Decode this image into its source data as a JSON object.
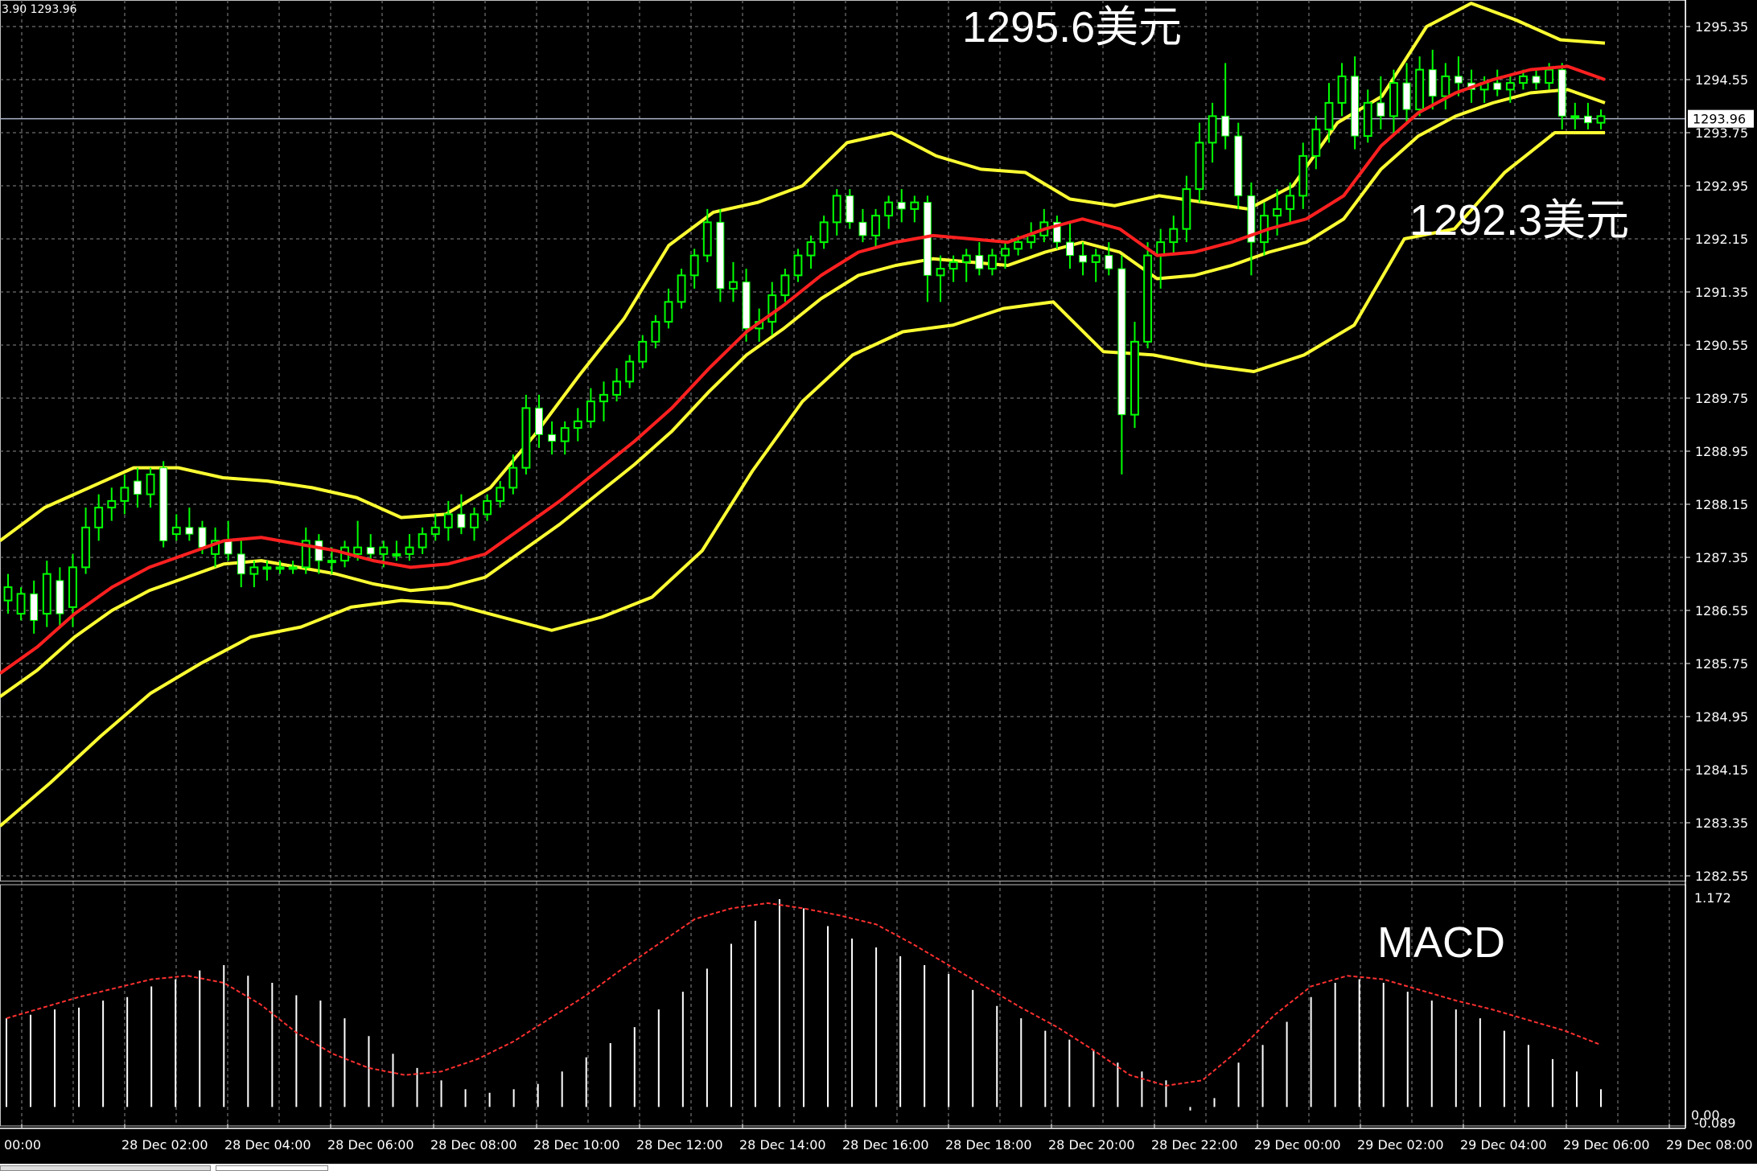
{
  "header": {
    "text": "3.90 1293.96"
  },
  "price_axis_labels": [
    "1295.35",
    "1294.55",
    "1293.75",
    "1292.95",
    "1292.15",
    "1291.35",
    "1290.55",
    "1289.75",
    "1288.95",
    "1288.15",
    "1287.35",
    "1286.55",
    "1285.75",
    "1284.95",
    "1284.15",
    "1283.35",
    "1282.55"
  ],
  "current_price": "1293.96",
  "time_labels": [
    "00:00",
    "28 Dec 02:00",
    "28 Dec 04:00",
    "28 Dec 06:00",
    "28 Dec 08:00",
    "28 Dec 10:00",
    "28 Dec 12:00",
    "28 Dec 14:00",
    "28 Dec 16:00",
    "28 Dec 18:00",
    "28 Dec 20:00",
    "28 Dec 22:00",
    "29 Dec 00:00",
    "29 Dec 02:00",
    "29 Dec 04:00",
    "29 Dec 06:00",
    "29 Dec 08:00"
  ],
  "annotations": {
    "high": "1295.6美元",
    "low": "1292.3美元",
    "macd": "MACD"
  },
  "macd_axis": {
    "top": "1.172",
    "zero": "0.00",
    "bottom": "-0.089"
  },
  "colors": {
    "background": "#000000",
    "grid": "#8a8a8a",
    "bull": "#00ff00",
    "bear_body": "#ffffff",
    "bollinger": "#ffff33",
    "ma": "#ff2020",
    "macd_hist": "#ffffff",
    "macd_signal": "#ff3030"
  },
  "chart_data": {
    "type": "candlestick",
    "ylim": [
      1282.55,
      1295.35
    ],
    "ma_red": [
      1285.6,
      1286.0,
      1286.5,
      1286.9,
      1287.2,
      1287.4,
      1287.6,
      1287.65,
      1287.55,
      1287.45,
      1287.3,
      1287.2,
      1287.25,
      1287.4,
      1287.8,
      1288.2,
      1288.65,
      1289.1,
      1289.6,
      1290.2,
      1290.75,
      1291.15,
      1291.6,
      1291.95,
      1292.1,
      1292.2,
      1292.15,
      1292.1,
      1292.3,
      1292.45,
      1292.3,
      1291.9,
      1291.95,
      1292.1,
      1292.3,
      1292.45,
      1292.8,
      1293.55,
      1294.05,
      1294.35,
      1294.55,
      1294.7,
      1294.75,
      1294.55
    ],
    "bb_upper": [
      1287.6,
      1288.1,
      1288.4,
      1288.7,
      1288.7,
      1288.55,
      1288.5,
      1288.4,
      1288.25,
      1287.95,
      1288.0,
      1288.4,
      1289.2,
      1290.1,
      1290.95,
      1292.05,
      1292.55,
      1292.7,
      1292.95,
      1293.6,
      1293.75,
      1293.4,
      1293.2,
      1293.15,
      1292.75,
      1292.65,
      1292.8,
      1292.7,
      1292.6,
      1292.95,
      1293.9,
      1294.3,
      1295.35,
      1295.7,
      1295.45,
      1295.15,
      1295.1
    ],
    "bb_lower": [
      1283.3,
      1283.95,
      1284.65,
      1285.3,
      1285.75,
      1286.15,
      1286.3,
      1286.6,
      1286.7,
      1286.65,
      1286.45,
      1286.25,
      1286.45,
      1286.75,
      1287.45,
      1288.65,
      1289.7,
      1290.4,
      1290.75,
      1290.85,
      1291.1,
      1291.2,
      1290.45,
      1290.4,
      1290.25,
      1290.15,
      1290.4,
      1290.85,
      1292.15,
      1292.3,
      1293.15,
      1293.75,
      1293.75
    ],
    "macd_histogram": [
      0.5,
      0.52,
      0.55,
      0.56,
      0.6,
      0.62,
      0.68,
      0.72,
      0.77,
      0.8,
      0.74,
      0.7,
      0.63,
      0.6,
      0.5,
      0.4,
      0.3,
      0.22,
      0.15,
      0.1,
      0.08,
      0.1,
      0.13,
      0.2,
      0.28,
      0.36,
      0.45,
      0.55,
      0.65,
      0.78,
      0.92,
      1.05,
      1.172,
      1.12,
      1.02,
      0.95,
      0.9,
      0.85,
      0.8,
      0.75,
      0.66,
      0.57,
      0.5,
      0.43,
      0.38,
      0.32,
      0.25,
      0.2,
      0.15,
      -0.02,
      0.05,
      0.25,
      0.35,
      0.48,
      0.62,
      0.7,
      0.72,
      0.7,
      0.65,
      0.6,
      0.55,
      0.5,
      0.43,
      0.35,
      0.27,
      0.2,
      0.1
    ],
    "macd_signal": [
      0.5,
      0.56,
      0.62,
      0.67,
      0.72,
      0.74,
      0.7,
      0.58,
      0.42,
      0.3,
      0.22,
      0.18,
      0.2,
      0.27,
      0.37,
      0.5,
      0.63,
      0.78,
      0.92,
      1.06,
      1.12,
      1.15,
      1.12,
      1.08,
      1.03,
      0.92,
      0.8,
      0.68,
      0.56,
      0.45,
      0.32,
      0.18,
      0.12,
      0.15,
      0.32,
      0.52,
      0.68,
      0.74,
      0.72,
      0.66,
      0.6,
      0.55,
      0.49,
      0.43,
      0.35
    ],
    "candles": [
      [
        1286.7,
        1287.1,
        1286.5,
        1286.9
      ],
      [
        1286.5,
        1286.9,
        1286.4,
        1286.8
      ],
      [
        1286.8,
        1287.0,
        1286.2,
        1286.4
      ],
      [
        1286.5,
        1287.3,
        1286.3,
        1287.1
      ],
      [
        1287.0,
        1287.2,
        1286.3,
        1286.5
      ],
      [
        1286.6,
        1287.4,
        1286.3,
        1287.2
      ],
      [
        1287.2,
        1288.1,
        1287.1,
        1287.8
      ],
      [
        1287.8,
        1288.3,
        1287.6,
        1288.1
      ],
      [
        1288.1,
        1288.4,
        1287.9,
        1288.2
      ],
      [
        1288.2,
        1288.6,
        1288.0,
        1288.4
      ],
      [
        1288.5,
        1288.7,
        1288.1,
        1288.3
      ],
      [
        1288.3,
        1288.7,
        1288.1,
        1288.6
      ],
      [
        1288.7,
        1288.8,
        1287.5,
        1287.6
      ],
      [
        1287.7,
        1288.0,
        1287.6,
        1287.8
      ],
      [
        1287.8,
        1288.1,
        1287.6,
        1287.7
      ],
      [
        1287.8,
        1287.9,
        1287.4,
        1287.5
      ],
      [
        1287.4,
        1287.8,
        1287.2,
        1287.6
      ],
      [
        1287.6,
        1287.9,
        1287.3,
        1287.4
      ],
      [
        1287.4,
        1287.6,
        1286.9,
        1287.1
      ],
      [
        1287.1,
        1287.3,
        1286.9,
        1287.2
      ],
      [
        1287.2,
        1287.3,
        1287.0,
        1287.2
      ],
      [
        1287.2,
        1287.3,
        1287.1,
        1287.2
      ],
      [
        1287.2,
        1287.3,
        1287.1,
        1287.2
      ],
      [
        1287.2,
        1287.8,
        1287.1,
        1287.6
      ],
      [
        1287.6,
        1287.7,
        1287.1,
        1287.3
      ],
      [
        1287.3,
        1287.5,
        1287.1,
        1287.3
      ],
      [
        1287.3,
        1287.6,
        1287.2,
        1287.5
      ],
      [
        1287.4,
        1287.9,
        1287.3,
        1287.5
      ],
      [
        1287.5,
        1287.7,
        1287.3,
        1287.4
      ],
      [
        1287.4,
        1287.6,
        1287.2,
        1287.5
      ],
      [
        1287.4,
        1287.6,
        1287.3,
        1287.4
      ],
      [
        1287.4,
        1287.7,
        1287.3,
        1287.5
      ],
      [
        1287.5,
        1287.8,
        1287.4,
        1287.7
      ],
      [
        1287.7,
        1288.0,
        1287.6,
        1287.8
      ],
      [
        1287.8,
        1288.2,
        1287.6,
        1288.0
      ],
      [
        1288.0,
        1288.3,
        1287.7,
        1287.8
      ],
      [
        1287.8,
        1288.1,
        1287.6,
        1288.0
      ],
      [
        1288.0,
        1288.3,
        1287.9,
        1288.2
      ],
      [
        1288.2,
        1288.5,
        1288.1,
        1288.4
      ],
      [
        1288.4,
        1288.9,
        1288.3,
        1288.7
      ],
      [
        1288.7,
        1289.8,
        1288.6,
        1289.6
      ],
      [
        1289.6,
        1289.8,
        1289.0,
        1289.2
      ],
      [
        1289.2,
        1289.4,
        1288.9,
        1289.1
      ],
      [
        1289.1,
        1289.4,
        1288.9,
        1289.3
      ],
      [
        1289.3,
        1289.6,
        1289.1,
        1289.4
      ],
      [
        1289.4,
        1289.9,
        1289.3,
        1289.7
      ],
      [
        1289.7,
        1290.0,
        1289.4,
        1289.8
      ],
      [
        1289.8,
        1290.2,
        1289.7,
        1290.0
      ],
      [
        1290.0,
        1290.4,
        1289.9,
        1290.3
      ],
      [
        1290.3,
        1290.7,
        1290.2,
        1290.6
      ],
      [
        1290.6,
        1291.0,
        1290.5,
        1290.9
      ],
      [
        1290.9,
        1291.4,
        1290.8,
        1291.2
      ],
      [
        1291.2,
        1291.7,
        1291.1,
        1291.6
      ],
      [
        1291.6,
        1292.0,
        1291.4,
        1291.9
      ],
      [
        1291.9,
        1292.6,
        1291.8,
        1292.4
      ],
      [
        1292.4,
        1292.6,
        1291.2,
        1291.4
      ],
      [
        1291.4,
        1291.8,
        1291.2,
        1291.5
      ],
      [
        1291.5,
        1291.7,
        1290.6,
        1290.8
      ],
      [
        1290.8,
        1291.1,
        1290.6,
        1290.9
      ],
      [
        1290.9,
        1291.5,
        1290.7,
        1291.3
      ],
      [
        1291.3,
        1291.7,
        1291.2,
        1291.6
      ],
      [
        1291.6,
        1292.0,
        1291.5,
        1291.9
      ],
      [
        1291.9,
        1292.2,
        1291.7,
        1292.1
      ],
      [
        1292.1,
        1292.5,
        1292.0,
        1292.4
      ],
      [
        1292.4,
        1292.9,
        1292.2,
        1292.8
      ],
      [
        1292.8,
        1292.9,
        1292.3,
        1292.4
      ],
      [
        1292.4,
        1292.6,
        1292.1,
        1292.2
      ],
      [
        1292.2,
        1292.6,
        1292.0,
        1292.5
      ],
      [
        1292.5,
        1292.8,
        1292.3,
        1292.7
      ],
      [
        1292.7,
        1292.9,
        1292.4,
        1292.6
      ],
      [
        1292.6,
        1292.8,
        1292.4,
        1292.7
      ],
      [
        1292.7,
        1292.8,
        1291.2,
        1291.6
      ],
      [
        1291.6,
        1291.9,
        1291.2,
        1291.7
      ],
      [
        1291.7,
        1291.9,
        1291.5,
        1291.8
      ],
      [
        1291.8,
        1292.0,
        1291.5,
        1291.9
      ],
      [
        1291.9,
        1292.1,
        1291.6,
        1291.7
      ],
      [
        1291.7,
        1292.0,
        1291.6,
        1291.9
      ],
      [
        1291.9,
        1292.1,
        1291.7,
        1292.0
      ],
      [
        1292.0,
        1292.2,
        1291.9,
        1292.1
      ],
      [
        1292.1,
        1292.4,
        1292.0,
        1292.2
      ],
      [
        1292.2,
        1292.6,
        1292.1,
        1292.4
      ],
      [
        1292.4,
        1292.5,
        1292.0,
        1292.1
      ],
      [
        1292.1,
        1292.4,
        1291.7,
        1291.9
      ],
      [
        1291.9,
        1292.1,
        1291.6,
        1291.8
      ],
      [
        1291.8,
        1292.0,
        1291.5,
        1291.9
      ],
      [
        1291.9,
        1292.1,
        1291.6,
        1291.7
      ],
      [
        1291.7,
        1291.9,
        1288.6,
        1289.5
      ],
      [
        1289.5,
        1290.9,
        1289.3,
        1290.6
      ],
      [
        1290.6,
        1292.1,
        1290.5,
        1291.9
      ],
      [
        1291.9,
        1292.3,
        1291.4,
        1292.1
      ],
      [
        1292.1,
        1292.5,
        1291.9,
        1292.3
      ],
      [
        1292.3,
        1293.1,
        1292.1,
        1292.9
      ],
      [
        1292.9,
        1293.9,
        1292.7,
        1293.6
      ],
      [
        1293.6,
        1294.2,
        1293.3,
        1294.0
      ],
      [
        1294.0,
        1294.8,
        1293.5,
        1293.7
      ],
      [
        1293.7,
        1293.9,
        1292.6,
        1292.8
      ],
      [
        1292.8,
        1293.0,
        1291.6,
        1292.1
      ],
      [
        1292.1,
        1292.7,
        1291.9,
        1292.5
      ],
      [
        1292.5,
        1292.9,
        1292.2,
        1292.6
      ],
      [
        1292.6,
        1293.0,
        1292.4,
        1292.8
      ],
      [
        1292.8,
        1293.6,
        1292.6,
        1293.4
      ],
      [
        1293.4,
        1294.0,
        1293.2,
        1293.8
      ],
      [
        1293.8,
        1294.5,
        1293.6,
        1294.2
      ],
      [
        1294.2,
        1294.8,
        1294.0,
        1294.6
      ],
      [
        1294.6,
        1294.9,
        1293.5,
        1293.7
      ],
      [
        1293.7,
        1294.4,
        1293.6,
        1294.2
      ],
      [
        1294.2,
        1294.6,
        1293.8,
        1294.0
      ],
      [
        1294.0,
        1294.7,
        1293.7,
        1294.5
      ],
      [
        1294.5,
        1294.8,
        1293.9,
        1294.1
      ],
      [
        1294.1,
        1294.9,
        1294.0,
        1294.7
      ],
      [
        1294.7,
        1295.0,
        1294.1,
        1294.3
      ],
      [
        1294.3,
        1294.8,
        1294.1,
        1294.6
      ],
      [
        1294.6,
        1294.9,
        1294.3,
        1294.5
      ],
      [
        1294.5,
        1294.7,
        1294.2,
        1294.4
      ],
      [
        1294.4,
        1294.6,
        1294.2,
        1294.5
      ],
      [
        1294.5,
        1294.7,
        1294.3,
        1294.4
      ],
      [
        1294.4,
        1294.6,
        1294.2,
        1294.5
      ],
      [
        1294.5,
        1294.7,
        1294.4,
        1294.6
      ],
      [
        1294.6,
        1294.7,
        1294.4,
        1294.5
      ],
      [
        1294.5,
        1294.8,
        1294.4,
        1294.7
      ],
      [
        1294.7,
        1294.8,
        1293.8,
        1294.0
      ],
      [
        1294.0,
        1294.2,
        1293.8,
        1294.0
      ],
      [
        1294.0,
        1294.2,
        1293.8,
        1293.9
      ],
      [
        1293.9,
        1294.1,
        1293.8,
        1294.0
      ]
    ]
  }
}
